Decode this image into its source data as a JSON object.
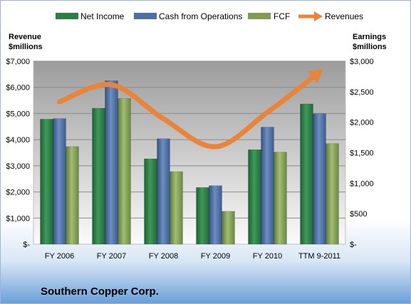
{
  "chart_data": {
    "type": "bar",
    "categories": [
      "FY 2006",
      "FY 2007",
      "FY 2008",
      "FY 2009",
      "FY 2010",
      "TTM 9-2011"
    ],
    "series": [
      {
        "name": "Net Income",
        "axis": "right",
        "values": [
          2050,
          2230,
          1400,
          930,
          1550,
          2300
        ],
        "color": "#2E7D46"
      },
      {
        "name": "Cash from Operations",
        "axis": "right",
        "values": [
          2060,
          2680,
          1730,
          960,
          1920,
          2140
        ],
        "color": "#4E6FA3"
      },
      {
        "name": "FCF",
        "axis": "right",
        "values": [
          1600,
          2390,
          1190,
          540,
          1510,
          1650
        ],
        "color": "#7F9C52"
      },
      {
        "name": "Revenues",
        "axis": "left",
        "type": "line",
        "values": [
          5450,
          6100,
          4800,
          3730,
          5050,
          6580
        ],
        "color": "#E9843A"
      }
    ],
    "left_axis": {
      "title_line1": "Revenue",
      "title_line2": "$millions",
      "ylim": [
        0,
        7000
      ],
      "ticks": [
        "$-",
        "$1,000",
        "$2,000",
        "$3,000",
        "$4,000",
        "$5,000",
        "$6,000",
        "$7,000"
      ]
    },
    "right_axis": {
      "title_line1": "Earnings",
      "title_line2": "$millions",
      "ylim": [
        0,
        3000
      ],
      "ticks": [
        "$-",
        "$500",
        "$1,000",
        "$1,500",
        "$2,000",
        "$2,500",
        "$3,000"
      ]
    },
    "legend_position": "top",
    "title": "Southern Copper Corp.",
    "grid": true
  }
}
